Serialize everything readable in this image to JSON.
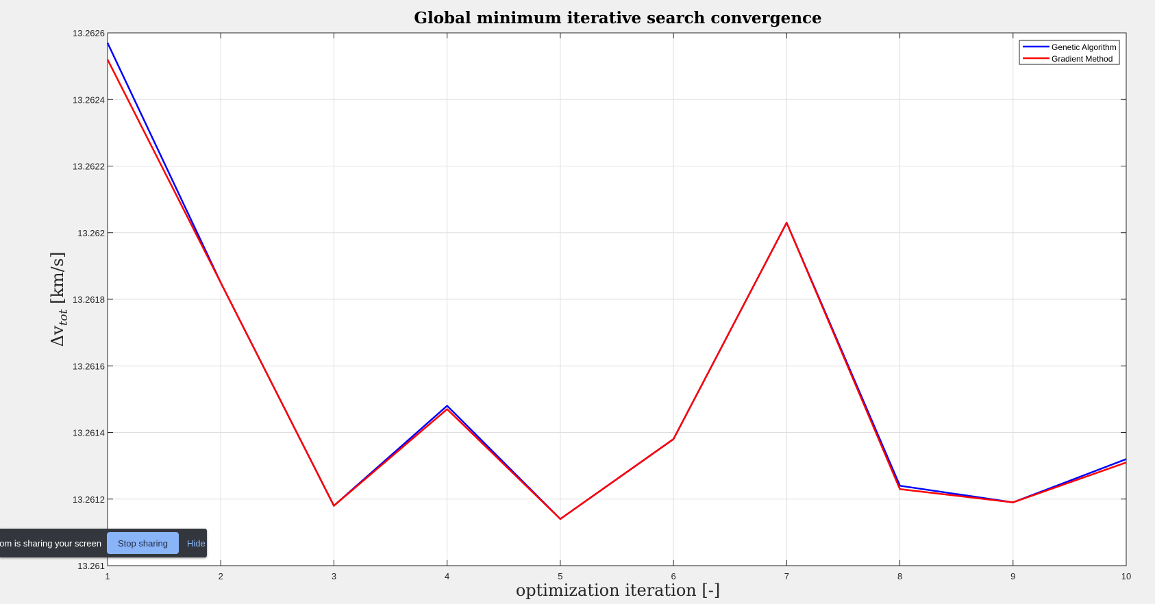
{
  "chart_data": {
    "type": "line",
    "title": "Global minimum iterative search convergence",
    "xlabel": "optimization iteration [-]",
    "ylabel": "Δv",
    "ylabel_sub": "tot",
    "ylabel_unit": " [km/s]",
    "xlim": [
      1,
      10
    ],
    "ylim": [
      13.261,
      13.2626
    ],
    "x_ticks": [
      "1",
      "2",
      "3",
      "4",
      "5",
      "6",
      "7",
      "8",
      "9",
      "10"
    ],
    "y_ticks": [
      "13.261",
      "13.2612",
      "13.2614",
      "13.2616",
      "13.2618",
      "13.262",
      "13.2622",
      "13.2624",
      "13.2626"
    ],
    "grid": true,
    "legend_position": "top-right",
    "x": [
      1,
      2,
      3,
      4,
      5,
      6,
      7,
      8,
      9,
      10
    ],
    "series": [
      {
        "name": "Genetic Algorithm",
        "color": "#0000ff",
        "values": [
          13.26257,
          13.26185,
          13.26118,
          13.26148,
          13.26114,
          13.26138,
          13.26203,
          13.26124,
          13.26119,
          13.26132
        ]
      },
      {
        "name": "Gradient Method",
        "color": "#ff0000",
        "values": [
          13.26252,
          13.26185,
          13.26118,
          13.26147,
          13.26114,
          13.26138,
          13.26203,
          13.26123,
          13.26119,
          13.26131
        ]
      }
    ]
  },
  "screen_share": {
    "message": "meet.google.com is sharing your screen.",
    "stop_label": "Stop sharing",
    "hide_label": "Hide"
  }
}
